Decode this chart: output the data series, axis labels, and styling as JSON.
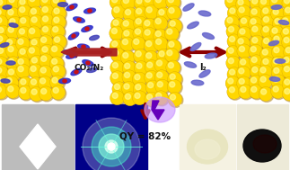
{
  "bg_color": "#ffffff",
  "mof_color": "#FFD700",
  "mof_shadow": "#CC9900",
  "mof_highlight": "#FFFFA0",
  "co2_outer": "#3333CC",
  "co2_inner": "#CC1111",
  "n2_color": "#4444BB",
  "i2_color": "#6666CC",
  "arrow_color": "#8B0000",
  "arrow_fill": "#AA2222",
  "text_co2n2": "CO₂/N₂",
  "text_i2": "I₂",
  "text_qy": "QY = 82%",
  "lightning_color": "#6600BB",
  "lightning_bg": "#CC99FF",
  "xrd_bg": "#BBBBBB",
  "fluor_bg": "#000099",
  "powder1_bg": "#F5F2E0",
  "powder2_bg": "#F0EDE0"
}
